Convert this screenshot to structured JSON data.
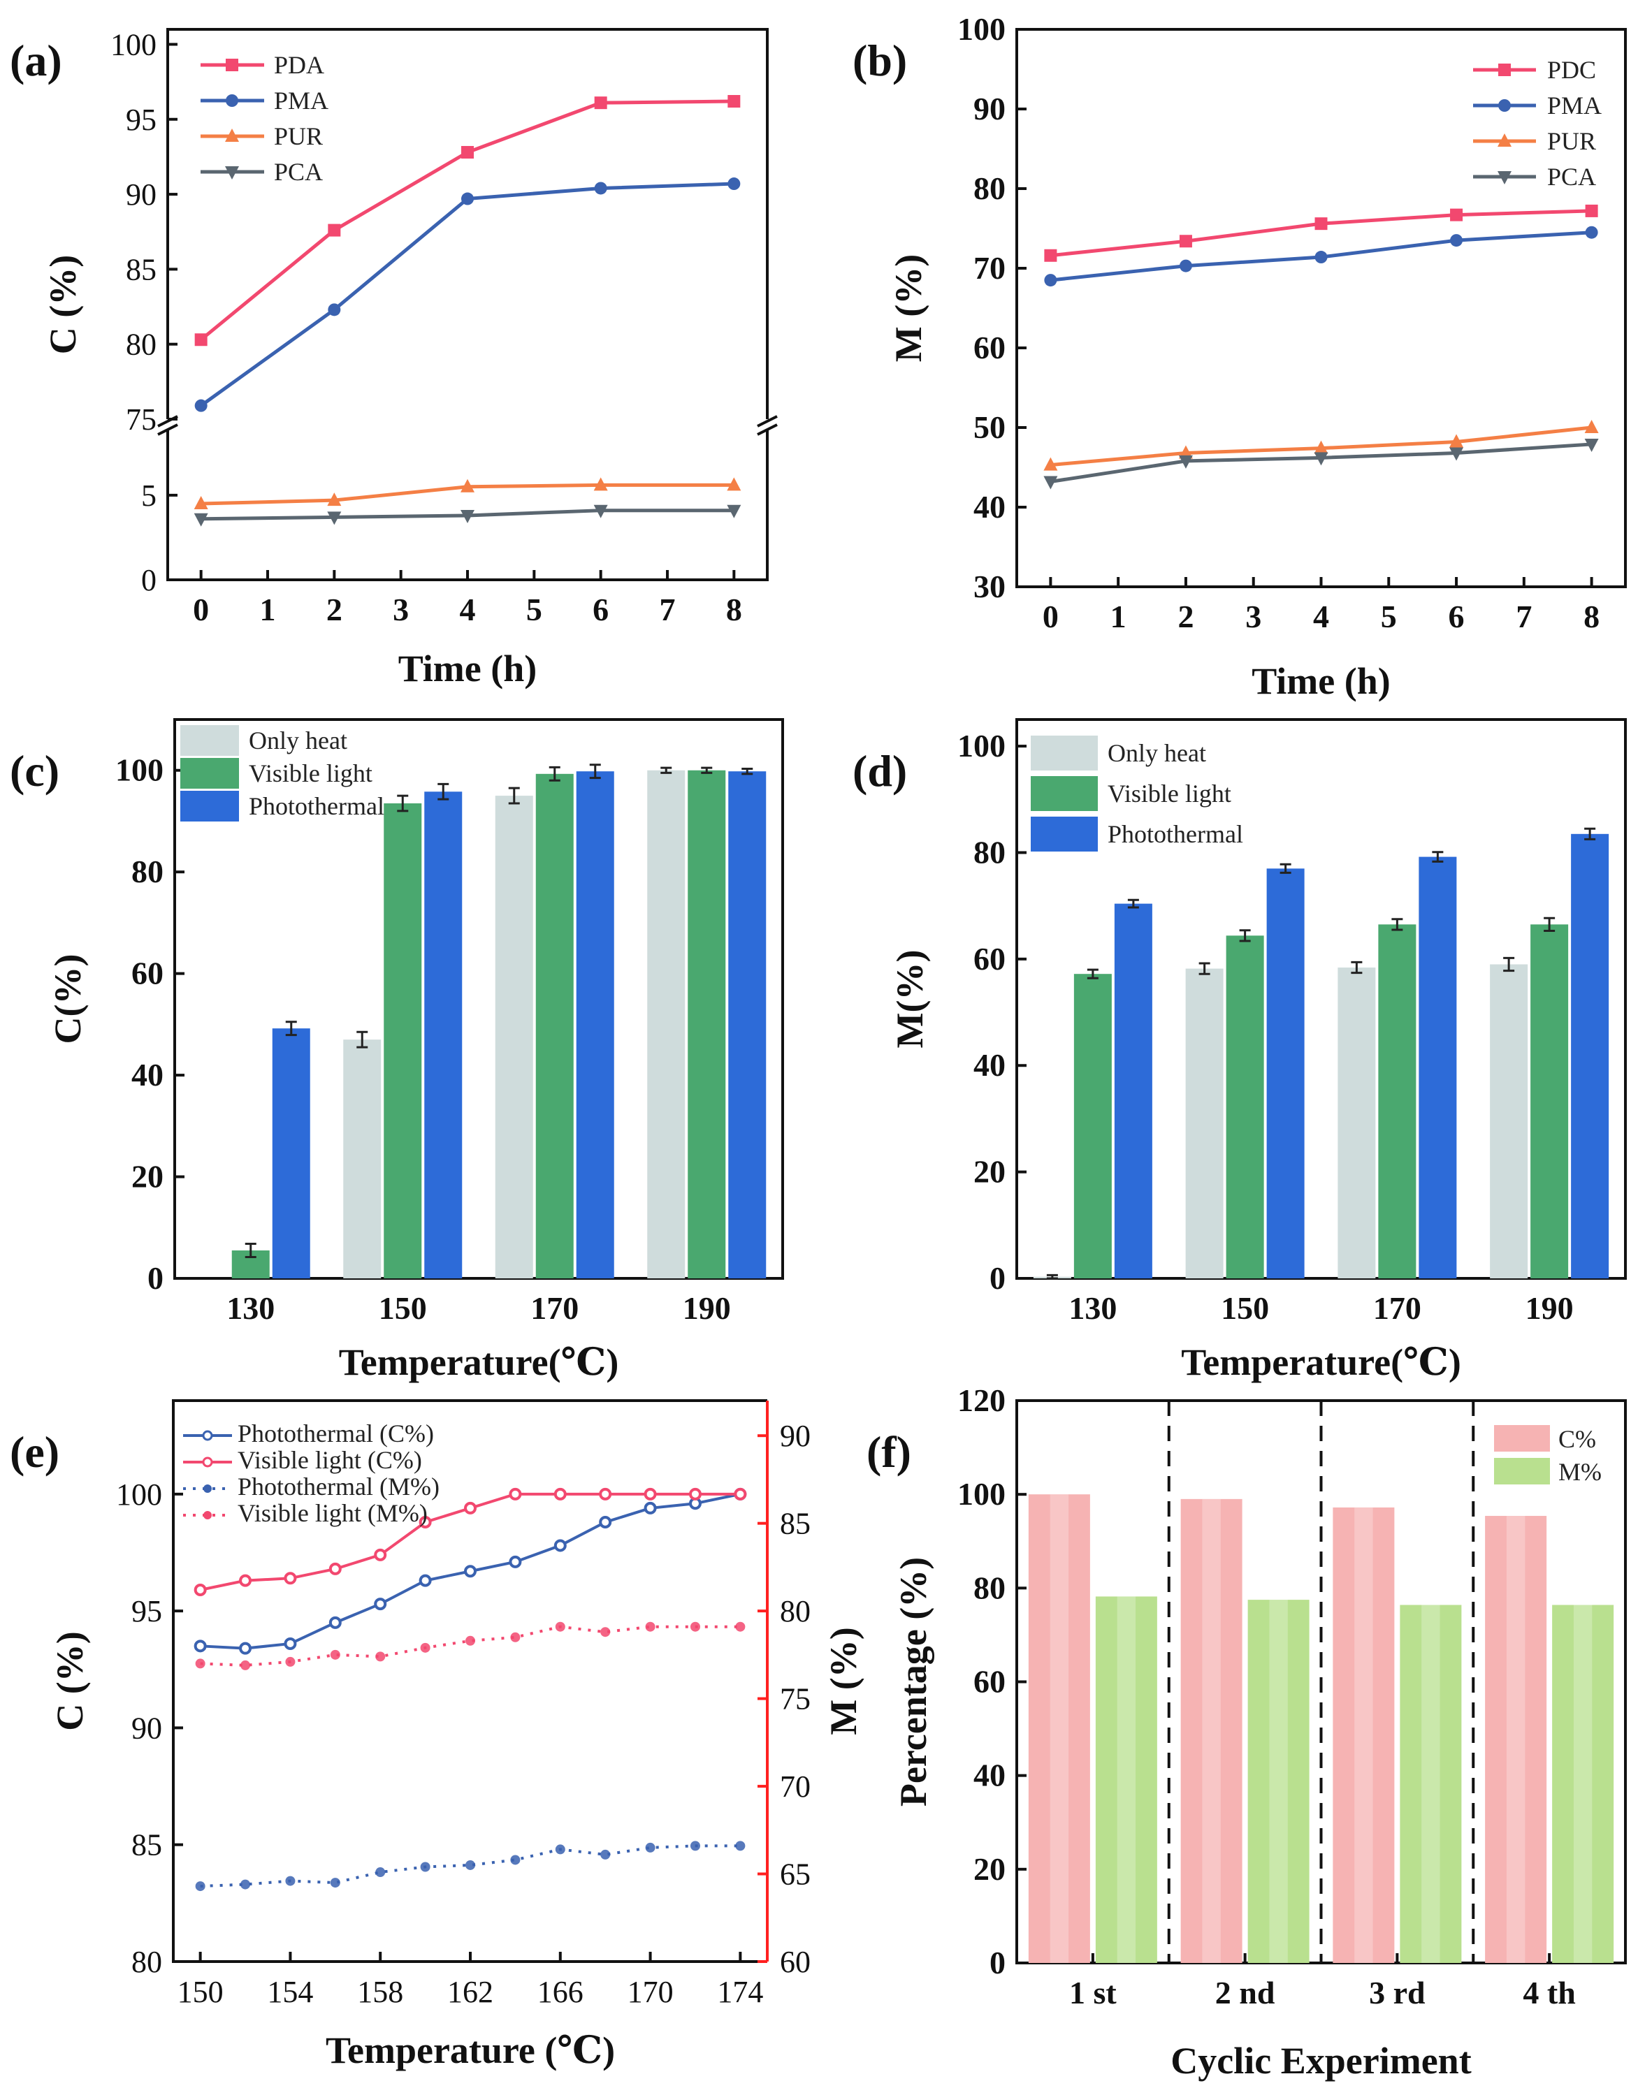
{
  "colors": {
    "pink": "#f2486f",
    "blue": "#3a62b0",
    "orange": "#f47f45",
    "gray": "#5a6670",
    "red_axis": "#ff2020",
    "only_heat": "#cfdcdc",
    "visible_light": "#4aa86f",
    "photothermal": "#2d6bd8",
    "c_bar": "#f6b3b3",
    "m_bar": "#b9e08f"
  },
  "chart_data": [
    {
      "panel": "(a)",
      "type": "line",
      "xlabel": "Time (h)",
      "ylabel": "C (%)",
      "x_ticks": [
        "0",
        "1",
        "2",
        "3",
        "4",
        "5",
        "6",
        "7",
        "8"
      ],
      "y_ticks_upper": [
        "75",
        "80",
        "85",
        "90",
        "95",
        "100"
      ],
      "y_ticks_lower": [
        "0",
        "5"
      ],
      "ylim_upper": [
        75,
        100
      ],
      "ylim_lower": [
        0,
        9
      ],
      "axis_break": true,
      "x": [
        0,
        2,
        4,
        6,
        8
      ],
      "series": [
        {
          "name": "PDA",
          "marker": "square",
          "color": "#f2486f",
          "values": [
            80.3,
            87.6,
            92.8,
            96.1,
            96.2
          ]
        },
        {
          "name": "PMA",
          "marker": "circle",
          "color": "#3a62b0",
          "values": [
            75.9,
            82.3,
            89.7,
            90.4,
            90.7
          ]
        },
        {
          "name": "PUR",
          "marker": "triangle-up",
          "color": "#f47f45",
          "values": [
            4.5,
            4.7,
            5.5,
            5.6,
            5.6
          ]
        },
        {
          "name": "PCA",
          "marker": "triangle-down",
          "color": "#5a6670",
          "values": [
            3.6,
            3.7,
            3.8,
            4.1,
            4.1
          ]
        }
      ]
    },
    {
      "panel": "(b)",
      "type": "line",
      "xlabel": "Time (h)",
      "ylabel": "M (%)",
      "x_ticks": [
        "0",
        "1",
        "2",
        "3",
        "4",
        "5",
        "6",
        "7",
        "8"
      ],
      "y_ticks": [
        "30",
        "40",
        "50",
        "60",
        "70",
        "80",
        "90",
        "100"
      ],
      "ylim": [
        30,
        100
      ],
      "x": [
        0,
        2,
        4,
        6,
        8
      ],
      "series": [
        {
          "name": "PDC",
          "marker": "square",
          "color": "#f2486f",
          "values": [
            71.6,
            73.4,
            75.6,
            76.7,
            77.2
          ]
        },
        {
          "name": "PMA",
          "marker": "circle",
          "color": "#3a62b0",
          "values": [
            68.5,
            70.3,
            71.4,
            73.5,
            74.5
          ]
        },
        {
          "name": "PUR",
          "marker": "triangle-up",
          "color": "#f47f45",
          "values": [
            45.3,
            46.8,
            47.4,
            48.2,
            50.0
          ]
        },
        {
          "name": "PCA",
          "marker": "triangle-down",
          "color": "#5a6670",
          "values": [
            43.2,
            45.8,
            46.2,
            46.8,
            47.9
          ]
        }
      ]
    },
    {
      "panel": "(c)",
      "type": "bar",
      "xlabel": "Temperature(℃)",
      "ylabel": "C(%)",
      "categories": [
        "130",
        "150",
        "170",
        "190"
      ],
      "y_ticks": [
        "0",
        "20",
        "40",
        "60",
        "80",
        "100"
      ],
      "ylim": [
        0,
        110
      ],
      "series": [
        {
          "name": "Only heat",
          "color": "#cfdcdc",
          "values": [
            0,
            47.0,
            95.0,
            100.0
          ],
          "errors": [
            0,
            1.5,
            1.5,
            0.5
          ]
        },
        {
          "name": "Visible light",
          "color": "#4aa86f",
          "values": [
            5.5,
            93.5,
            99.3,
            100.0
          ],
          "errors": [
            1.3,
            1.5,
            1.3,
            0.5
          ]
        },
        {
          "name": "Photothermal",
          "color": "#2d6bd8",
          "values": [
            49.2,
            95.8,
            99.8,
            99.8
          ],
          "errors": [
            1.3,
            1.5,
            1.3,
            0.5
          ]
        }
      ]
    },
    {
      "panel": "(d)",
      "type": "bar",
      "xlabel": "Temperature(℃)",
      "ylabel": "M(%)",
      "categories": [
        "130",
        "150",
        "170",
        "190"
      ],
      "y_ticks": [
        "0",
        "20",
        "40",
        "60",
        "80",
        "100"
      ],
      "ylim": [
        0,
        105
      ],
      "series": [
        {
          "name": "Only heat",
          "color": "#cfdcdc",
          "values": [
            0.3,
            58.2,
            58.4,
            59.0
          ],
          "errors": [
            0.3,
            1.0,
            1.0,
            1.2
          ]
        },
        {
          "name": "Visible light",
          "color": "#4aa86f",
          "values": [
            57.2,
            64.4,
            66.5,
            66.5
          ],
          "errors": [
            0.8,
            1.0,
            1.0,
            1.2
          ]
        },
        {
          "name": "Photothermal",
          "color": "#2d6bd8",
          "values": [
            70.4,
            77.0,
            79.2,
            83.5
          ],
          "errors": [
            0.7,
            0.8,
            0.9,
            1.0
          ]
        }
      ]
    },
    {
      "panel": "(e)",
      "type": "line",
      "xlabel": "Temperature (℃)",
      "ylabel": "C (%)",
      "ylabel_right": "M (%)",
      "x_ticks": [
        "150",
        "154",
        "158",
        "162",
        "166",
        "170",
        "174"
      ],
      "y_ticks": [
        "80",
        "85",
        "90",
        "95",
        "100"
      ],
      "y_ticks_right": [
        "60",
        "65",
        "70",
        "75",
        "80",
        "85",
        "90"
      ],
      "ylim": [
        80,
        104
      ],
      "ylim_right": [
        60,
        92
      ],
      "x": [
        150,
        152,
        154,
        156,
        158,
        160,
        162,
        164,
        166,
        168,
        170,
        172,
        174
      ],
      "series": [
        {
          "name": "Photothermal (C%)",
          "axis": "left",
          "style": "solid",
          "color": "#3a62b0",
          "values": [
            93.5,
            93.4,
            93.6,
            94.5,
            95.3,
            96.3,
            96.7,
            97.1,
            97.8,
            98.8,
            99.4,
            99.6,
            100.0
          ]
        },
        {
          "name": "Visible light   (C%)",
          "axis": "left",
          "style": "solid",
          "color": "#f2486f",
          "values": [
            95.9,
            96.3,
            96.4,
            96.8,
            97.4,
            98.8,
            99.4,
            100.0,
            100.0,
            100.0,
            100.0,
            100.0,
            100.0
          ]
        },
        {
          "name": "Photothermal (M%)",
          "axis": "right",
          "style": "dotted",
          "color": "#3a62b0",
          "values": [
            64.3,
            64.4,
            64.6,
            64.5,
            65.1,
            65.4,
            65.5,
            65.8,
            66.4,
            66.1,
            66.5,
            66.6,
            66.6
          ]
        },
        {
          "name": "Visible light   (M%)",
          "axis": "right",
          "style": "dotted",
          "color": "#f2486f",
          "values": [
            77.0,
            76.9,
            77.1,
            77.5,
            77.4,
            77.9,
            78.3,
            78.5,
            79.1,
            78.8,
            79.1,
            79.1,
            79.1
          ]
        }
      ]
    },
    {
      "panel": "(f)",
      "type": "bar",
      "xlabel": "Cyclic Experiment",
      "ylabel": "Percentage (%)",
      "categories": [
        "1 st",
        "2 nd",
        "3 rd",
        "4 th"
      ],
      "y_ticks": [
        "0",
        "20",
        "40",
        "60",
        "80",
        "100",
        "120"
      ],
      "ylim": [
        0,
        120
      ],
      "series": [
        {
          "name": "C%",
          "color": "#f6b3b3",
          "values": [
            100.0,
            99.0,
            97.2,
            95.4
          ]
        },
        {
          "name": "M%",
          "color": "#b9e08f",
          "values": [
            78.2,
            77.5,
            76.4,
            76.4
          ]
        }
      ]
    }
  ]
}
